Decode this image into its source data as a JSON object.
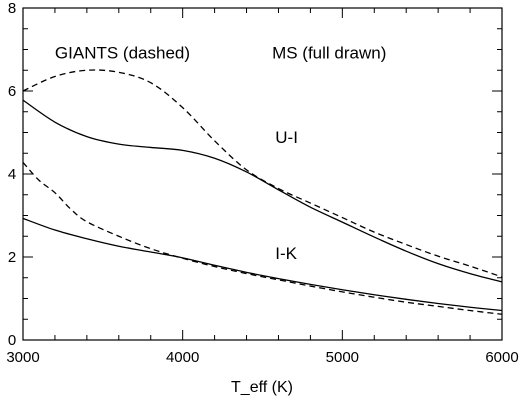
{
  "chart_data": {
    "type": "line",
    "title": "",
    "xlabel": "T_eff (K)",
    "ylabel": "",
    "xlim": [
      3000,
      6000
    ],
    "ylim": [
      0,
      8
    ],
    "grid": false,
    "x_ticks": [
      3000,
      4000,
      5000,
      6000
    ],
    "y_ticks": [
      0,
      2,
      4,
      6,
      8
    ],
    "x_tick_labels": [
      "3000",
      "4000",
      "5000",
      "6000"
    ],
    "y_tick_labels": [
      "0",
      "2",
      "4",
      "6",
      "8"
    ],
    "series": [
      {
        "style": "solid",
        "points": [
          [
            3000,
            5.78
          ],
          [
            3200,
            5.25
          ],
          [
            3400,
            4.9
          ],
          [
            3600,
            4.72
          ],
          [
            3800,
            4.64
          ],
          [
            4000,
            4.57
          ],
          [
            4200,
            4.38
          ],
          [
            4400,
            4.05
          ],
          [
            4600,
            3.62
          ],
          [
            4800,
            3.2
          ],
          [
            5000,
            2.84
          ],
          [
            5200,
            2.48
          ],
          [
            5400,
            2.14
          ],
          [
            5600,
            1.84
          ],
          [
            5800,
            1.6
          ],
          [
            6000,
            1.4
          ]
        ]
      },
      {
        "style": "dashed",
        "points": [
          [
            3000,
            6.0
          ],
          [
            3200,
            6.35
          ],
          [
            3400,
            6.5
          ],
          [
            3600,
            6.45
          ],
          [
            3800,
            6.2
          ],
          [
            4000,
            5.6
          ],
          [
            4200,
            4.8
          ],
          [
            4400,
            4.1
          ],
          [
            4600,
            3.65
          ],
          [
            4800,
            3.3
          ],
          [
            5000,
            2.95
          ],
          [
            5200,
            2.6
          ],
          [
            5400,
            2.3
          ],
          [
            5600,
            2.02
          ],
          [
            5800,
            1.78
          ],
          [
            6000,
            1.52
          ]
        ]
      },
      {
        "style": "solid",
        "points": [
          [
            3000,
            2.93
          ],
          [
            3200,
            2.65
          ],
          [
            3400,
            2.44
          ],
          [
            3600,
            2.26
          ],
          [
            3800,
            2.12
          ],
          [
            4000,
            1.98
          ],
          [
            4200,
            1.8
          ],
          [
            4400,
            1.63
          ],
          [
            4600,
            1.48
          ],
          [
            4800,
            1.34
          ],
          [
            5000,
            1.21
          ],
          [
            5200,
            1.09
          ],
          [
            5400,
            0.98
          ],
          [
            5600,
            0.88
          ],
          [
            5800,
            0.79
          ],
          [
            6000,
            0.71
          ]
        ]
      },
      {
        "style": "dashed",
        "points": [
          [
            3000,
            4.28
          ],
          [
            3100,
            3.85
          ],
          [
            3200,
            3.55
          ],
          [
            3300,
            3.15
          ],
          [
            3400,
            2.85
          ],
          [
            3600,
            2.5
          ],
          [
            3800,
            2.2
          ],
          [
            4000,
            1.97
          ],
          [
            4200,
            1.77
          ],
          [
            4400,
            1.6
          ],
          [
            4600,
            1.45
          ],
          [
            4800,
            1.3
          ],
          [
            5000,
            1.16
          ],
          [
            5200,
            1.03
          ],
          [
            5400,
            0.91
          ],
          [
            5600,
            0.81
          ],
          [
            5800,
            0.71
          ],
          [
            6000,
            0.62
          ]
        ]
      }
    ],
    "annotations": [
      {
        "text": "GIANTS (dashed)",
        "x": 3200,
        "y": 6.78
      },
      {
        "text": "MS (full drawn)",
        "x": 4560,
        "y": 6.78
      },
      {
        "text": "U-I",
        "x": 4580,
        "y": 4.75
      },
      {
        "text": "I-K",
        "x": 4580,
        "y": 1.95
      }
    ]
  }
}
